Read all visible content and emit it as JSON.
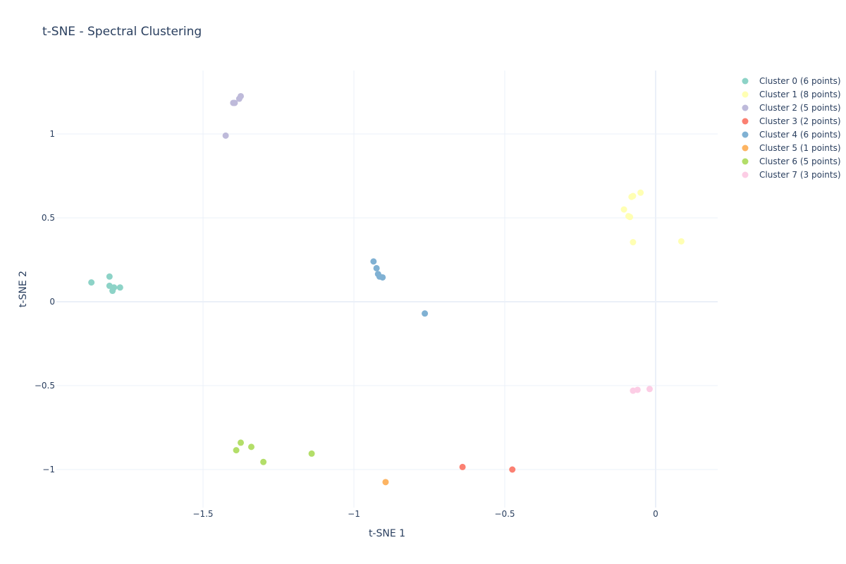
{
  "chart_data": {
    "type": "scatter",
    "title": "t-SNE - Spectral Clustering",
    "xlabel": "t-SNE 1",
    "ylabel": "t-SNE 2",
    "xlim": [
      -1.9,
      0.2
    ],
    "ylim": [
      -1.15,
      1.38
    ],
    "xticks": [
      -1.5,
      -1,
      -0.5,
      0
    ],
    "xtick_labels": [
      "−1.5",
      "−1",
      "−0.5",
      "0"
    ],
    "yticks": [
      -1,
      -0.5,
      0,
      0.5,
      1
    ],
    "ytick_labels": [
      "−1",
      "−0.5",
      "0",
      "0.5",
      "1"
    ],
    "grid": true,
    "legend_position": "top-right",
    "series": [
      {
        "name": "Cluster 0 (6 points)",
        "color": "#8dd3c7",
        "points": [
          [
            -1.87,
            0.115
          ],
          [
            -1.81,
            0.15
          ],
          [
            -1.81,
            0.095
          ],
          [
            -1.795,
            0.085
          ],
          [
            -1.8,
            0.065
          ],
          [
            -1.775,
            0.085
          ]
        ]
      },
      {
        "name": "Cluster 1 (8 points)",
        "color": "#ffffb3",
        "points": [
          [
            -0.05,
            0.65
          ],
          [
            -0.075,
            0.63
          ],
          [
            -0.105,
            0.55
          ],
          [
            -0.085,
            0.505
          ],
          [
            -0.075,
            0.355
          ],
          [
            0.085,
            0.36
          ],
          [
            -0.08,
            0.625
          ],
          [
            -0.09,
            0.51
          ]
        ]
      },
      {
        "name": "Cluster 2 (5 points)",
        "color": "#bebada",
        "points": [
          [
            -1.375,
            1.225
          ],
          [
            -1.38,
            1.21
          ],
          [
            -1.395,
            1.185
          ],
          [
            -1.4,
            1.185
          ],
          [
            -1.425,
            0.99
          ]
        ]
      },
      {
        "name": "Cluster 3 (2 points)",
        "color": "#fb8072",
        "points": [
          [
            -0.64,
            -0.985
          ],
          [
            -0.475,
            -1.0
          ]
        ]
      },
      {
        "name": "Cluster 4 (6 points)",
        "color": "#80b1d3",
        "points": [
          [
            -0.935,
            0.24
          ],
          [
            -0.925,
            0.2
          ],
          [
            -0.92,
            0.165
          ],
          [
            -0.915,
            0.15
          ],
          [
            -0.905,
            0.145
          ],
          [
            -0.765,
            -0.07
          ]
        ]
      },
      {
        "name": "Cluster 5 (1 points)",
        "color": "#fdb462",
        "points": [
          [
            -0.895,
            -1.075
          ]
        ]
      },
      {
        "name": "Cluster 6 (5 points)",
        "color": "#b3de69",
        "points": [
          [
            -1.375,
            -0.84
          ],
          [
            -1.39,
            -0.885
          ],
          [
            -1.34,
            -0.865
          ],
          [
            -1.3,
            -0.955
          ],
          [
            -1.14,
            -0.905
          ]
        ]
      },
      {
        "name": "Cluster 7 (3 points)",
        "color": "#fccde5",
        "points": [
          [
            -0.075,
            -0.53
          ],
          [
            -0.06,
            -0.525
          ],
          [
            -0.02,
            -0.52
          ]
        ]
      }
    ]
  }
}
